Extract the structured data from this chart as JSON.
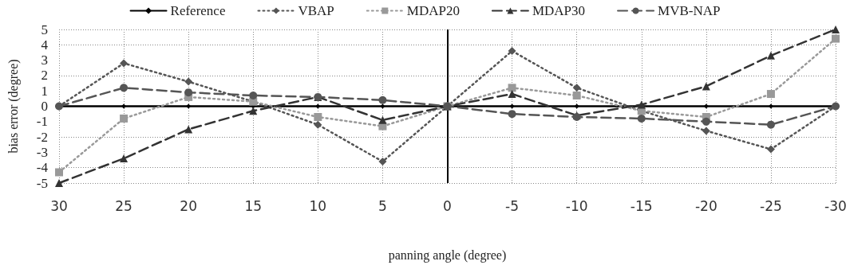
{
  "chart_data": {
    "type": "line",
    "xlabel": "panning angle (degree)",
    "ylabel": "bias error (degree)",
    "categories": [
      "30",
      "25",
      "20",
      "15",
      "10",
      "5",
      "0",
      "-5",
      "-10",
      "-15",
      "-20",
      "-25",
      "-30"
    ],
    "ylim": [
      -5,
      5
    ],
    "yticks": [
      -5,
      -4,
      -3,
      -2,
      -1,
      0,
      1,
      2,
      3,
      4,
      5
    ],
    "grid": true,
    "legend": "top",
    "ref_lines": [
      {
        "axis": "x",
        "value": "0",
        "color": "#000000",
        "line_style": "solid"
      }
    ],
    "series": [
      {
        "name": "Reference",
        "color": "#000000",
        "marker": "diamond",
        "line_style": "solid",
        "values": [
          0,
          0,
          0,
          0,
          0,
          0,
          0,
          0,
          0,
          0,
          0,
          0,
          0
        ]
      },
      {
        "name": "VBAP",
        "color": "#555555",
        "marker": "diamond",
        "line_style": "dotted",
        "values": [
          0,
          2.8,
          1.6,
          0.3,
          -1.2,
          -3.6,
          0,
          3.6,
          1.2,
          -0.3,
          -1.6,
          -2.8,
          0
        ]
      },
      {
        "name": "MDAP20",
        "color": "#999999",
        "marker": "square",
        "line_style": "dotted",
        "values": [
          -4.3,
          -0.8,
          0.6,
          0.3,
          -0.7,
          -1.3,
          0,
          1.2,
          0.7,
          -0.3,
          -0.7,
          0.8,
          4.4
        ]
      },
      {
        "name": "MDAP30",
        "color": "#333333",
        "marker": "triangle",
        "line_style": "dashed",
        "values": [
          -5,
          -3.4,
          -1.5,
          -0.3,
          0.6,
          -0.9,
          0,
          0.8,
          -0.6,
          0.1,
          1.3,
          3.3,
          5
        ]
      },
      {
        "name": "MVB-NAP",
        "color": "#555555",
        "marker": "circle",
        "line_style": "dashed",
        "values": [
          0,
          1.2,
          0.9,
          0.7,
          0.6,
          0.4,
          0,
          -0.5,
          -0.7,
          -0.8,
          -1.0,
          -1.2,
          0
        ]
      }
    ]
  }
}
